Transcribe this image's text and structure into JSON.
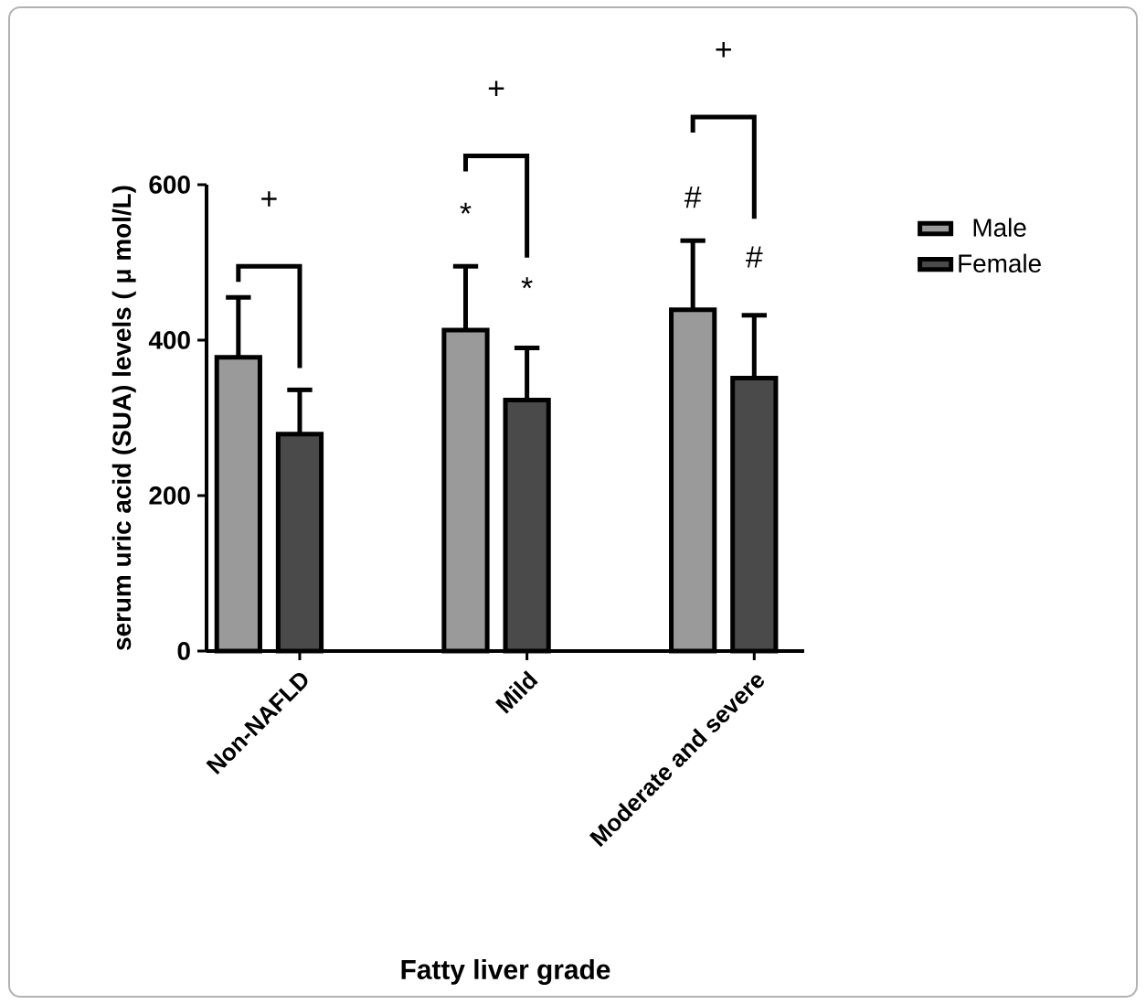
{
  "chart_data": {
    "type": "bar",
    "xlabel": "Fatty liver grade",
    "ylabel": "serum uric acid (SUA) levels ( μ mol/L)",
    "categories": [
      "Non-NAFLD",
      "Mild",
      "Moderate and severe"
    ],
    "series": [
      {
        "name": "Male",
        "color": "#9a9a9a",
        "values": [
          378,
          413,
          439
        ],
        "errors": [
          [
            378,
            455
          ],
          [
            413,
            495
          ],
          [
            439,
            528
          ]
        ]
      },
      {
        "name": "Female",
        "color": "#4a4a4a",
        "values": [
          279,
          323,
          351
        ],
        "errors": [
          [
            279,
            336
          ],
          [
            323,
            390
          ],
          [
            351,
            432
          ]
        ]
      }
    ],
    "ylim": [
      0,
      600
    ],
    "yticks": [
      0,
      200,
      400,
      600
    ],
    "legend": "top right",
    "annotations": [
      "+",
      "+",
      "*",
      "*",
      "+",
      "#",
      "#"
    ]
  }
}
